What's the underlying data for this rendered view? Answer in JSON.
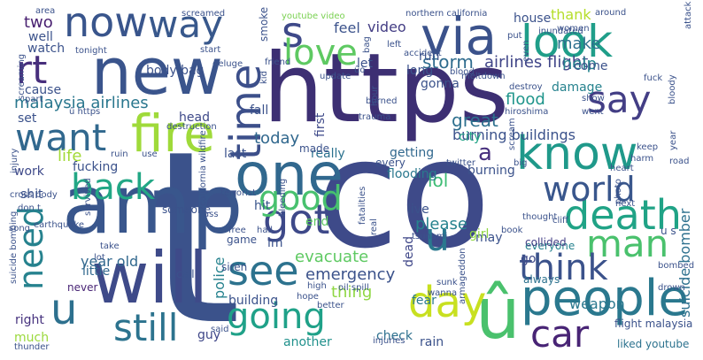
{
  "words": [
    {
      "text": "t",
      "color": "#3b528b"
    },
    {
      "text": "co",
      "color": "#3e4a89"
    },
    {
      "text": "https",
      "color": "#3d2f73"
    },
    {
      "text": "amp",
      "color": "#39568c"
    },
    {
      "text": "new",
      "color": "#3a548c"
    },
    {
      "text": "will",
      "color": "#3e4a89"
    },
    {
      "text": "û",
      "color": "#4ac16d"
    },
    {
      "text": "one",
      "color": "#31688e"
    },
    {
      "text": "people",
      "color": "#2a788e"
    },
    {
      "text": "via",
      "color": "#3b528b"
    },
    {
      "text": "know",
      "color": "#1f998a"
    },
    {
      "text": "s",
      "color": "#3e4989"
    },
    {
      "text": "now",
      "color": "#39558c"
    },
    {
      "text": "fire",
      "color": "#9fda3a"
    },
    {
      "text": "look",
      "color": "#1f9e89"
    },
    {
      "text": "death",
      "color": "#20a386"
    },
    {
      "text": "got",
      "color": "#3e4989"
    },
    {
      "text": "see",
      "color": "#2c728e"
    },
    {
      "text": "time",
      "color": "#3c4f8a"
    },
    {
      "text": "man",
      "color": "#4ac16d"
    },
    {
      "text": "say",
      "color": "#433e85"
    },
    {
      "text": "day",
      "color": "#c8e020"
    },
    {
      "text": "still",
      "color": "#2c738e"
    },
    {
      "text": "car",
      "color": "#482475"
    },
    {
      "text": "think",
      "color": "#3b528b"
    },
    {
      "text": "going",
      "color": "#1fa188"
    },
    {
      "text": "good",
      "color": "#48c16e"
    },
    {
      "text": "want",
      "color": "#31688e"
    },
    {
      "text": "back",
      "color": "#22a785"
    },
    {
      "text": "world",
      "color": "#39568c"
    },
    {
      "text": "way",
      "color": "#38588c"
    },
    {
      "text": "u",
      "color": "#2d708e"
    },
    {
      "text": "love",
      "color": "#5ec962"
    },
    {
      "text": "rt",
      "color": "#472e7c"
    },
    {
      "text": "need",
      "color": "#26828e"
    },
    {
      "text": "u",
      "color": "#2a778e"
    },
    {
      "text": "emergency",
      "color": "#3b528b"
    },
    {
      "text": "malaysia airlines",
      "color": "#2a778e"
    },
    {
      "text": "storm",
      "color": "#2f6c8e"
    },
    {
      "text": "airlines flight",
      "color": "#404588"
    },
    {
      "text": "suicide bomber",
      "color": "#2d708e"
    },
    {
      "text": "flood",
      "color": "#1f958b"
    },
    {
      "text": "great",
      "color": "#2d708e"
    },
    {
      "text": "burning buildings",
      "color": "#3b528b"
    },
    {
      "text": "today",
      "color": "#31688e"
    },
    {
      "text": "year old",
      "color": "#31688e"
    },
    {
      "text": "life",
      "color": "#a2da37"
    },
    {
      "text": "two",
      "color": "#481f70"
    },
    {
      "text": "make",
      "color": "#2d708e"
    },
    {
      "text": "thank",
      "color": "#b5de2b"
    },
    {
      "text": "feel",
      "color": "#3b528b"
    },
    {
      "text": "video",
      "color": "#433d84"
    },
    {
      "text": "help",
      "color": "#25848e"
    },
    {
      "text": "a",
      "color": "#472f7d"
    },
    {
      "text": "police",
      "color": "#26828e"
    },
    {
      "text": "building",
      "color": "#3b528b"
    },
    {
      "text": "lol",
      "color": "#3dbc74"
    },
    {
      "text": "dead",
      "color": "#3f4788"
    },
    {
      "text": "please",
      "color": "#26828e"
    },
    {
      "text": "evacuate",
      "color": "#5ec962"
    },
    {
      "text": "thing",
      "color": "#8fd744"
    },
    {
      "text": "weapon",
      "color": "#2a788e"
    },
    {
      "text": "flight malaysia",
      "color": "#3b528b"
    },
    {
      "text": "liked youtube",
      "color": "#2c728e"
    },
    {
      "text": "rain",
      "color": "#3b528b"
    },
    {
      "text": "check",
      "color": "#2d708e"
    },
    {
      "text": "another",
      "color": "#21918c"
    },
    {
      "text": "guy",
      "color": "#3f4788"
    },
    {
      "text": "much",
      "color": "#9bd93c"
    },
    {
      "text": "right",
      "color": "#46327e"
    },
    {
      "text": "never",
      "color": "#482475"
    },
    {
      "text": "little",
      "color": "#31688e"
    },
    {
      "text": "fear",
      "color": "#2a788e"
    },
    {
      "text": "may",
      "color": "#3b528b"
    },
    {
      "text": "girl",
      "color": "#90d743"
    },
    {
      "text": "everyone",
      "color": "#26828e"
    },
    {
      "text": "always",
      "color": "#2c728e"
    },
    {
      "text": "go",
      "color": "#3e4989"
    },
    {
      "text": "collided",
      "color": "#433e85"
    },
    {
      "text": "damage",
      "color": "#26828e"
    },
    {
      "text": "come",
      "color": "#3b528b"
    },
    {
      "text": "burning",
      "color": "#3b528b"
    },
    {
      "text": "city",
      "color": "#20a386"
    },
    {
      "text": "really",
      "color": "#2c728e"
    },
    {
      "text": "first",
      "color": "#3e4989"
    },
    {
      "text": "getting",
      "color": "#31688e"
    },
    {
      "text": "flooding",
      "color": "#2a788e"
    },
    {
      "text": "every",
      "color": "#3b528b"
    },
    {
      "text": "made",
      "color": "#3b528b"
    },
    {
      "text": "fucking",
      "color": "#3b528b"
    },
    {
      "text": "work",
      "color": "#3e4989"
    },
    {
      "text": "shit",
      "color": "#3b528b"
    },
    {
      "text": "hit",
      "color": "#39558c"
    },
    {
      "text": "end",
      "color": "#5ec962"
    },
    {
      "text": "im",
      "color": "#3b528b"
    },
    {
      "text": "call",
      "color": "#3b528b"
    },
    {
      "text": "game",
      "color": "#3b528b"
    },
    {
      "text": "siren",
      "color": "#3b528b"
    },
    {
      "text": "live",
      "color": "#3b528b"
    },
    {
      "text": "fall",
      "color": "#3b528b"
    },
    {
      "text": "head",
      "color": "#3e4989"
    },
    {
      "text": "set",
      "color": "#3b528b"
    },
    {
      "text": "cause",
      "color": "#3b528b"
    },
    {
      "text": "well",
      "color": "#3b528b"
    },
    {
      "text": "watch",
      "color": "#3b528b"
    },
    {
      "text": "body bag",
      "color": "#3b528b"
    },
    {
      "text": "let",
      "color": "#3b528b"
    },
    {
      "text": "long",
      "color": "#3b528b"
    },
    {
      "text": "run",
      "color": "#3b528b"
    },
    {
      "text": "house",
      "color": "#3b528b"
    },
    {
      "text": "gonna",
      "color": "#3b528b"
    },
    {
      "text": "smoke",
      "color": "#3b528b"
    },
    {
      "text": "last",
      "color": "#3b528b"
    },
    {
      "text": "someone",
      "color": "#3b528b"
    },
    {
      "text": "youtube video",
      "color": "#7ad151"
    },
    {
      "text": "northern california",
      "color": "#3b528b"
    },
    {
      "text": "screamed",
      "color": "#3b528b"
    },
    {
      "text": "area",
      "color": "#3b528b"
    },
    {
      "text": "around",
      "color": "#3b528b"
    },
    {
      "text": "women",
      "color": "#3b528b"
    },
    {
      "text": "attack",
      "color": "#3b528b"
    },
    {
      "text": "even",
      "color": "#3b528b"
    },
    {
      "text": "inundated",
      "color": "#3b528b"
    },
    {
      "text": "accident",
      "color": "#3b528b"
    },
    {
      "text": "meltdown",
      "color": "#3b528b"
    },
    {
      "text": "blood",
      "color": "#3b528b"
    },
    {
      "text": "left",
      "color": "#3b528b"
    },
    {
      "text": "put",
      "color": "#3b528b"
    },
    {
      "text": "friend",
      "color": "#3b528b"
    },
    {
      "text": "update",
      "color": "#3b528b"
    },
    {
      "text": "kid",
      "color": "#3b528b"
    },
    {
      "text": "deluge",
      "color": "#3b528b"
    },
    {
      "text": "start",
      "color": "#3b528b"
    },
    {
      "text": "tonight",
      "color": "#3b528b"
    },
    {
      "text": "screaming",
      "color": "#3b528b"
    },
    {
      "text": "part",
      "color": "#3b528b"
    },
    {
      "text": "û https",
      "color": "#3b528b"
    },
    {
      "text": "destruction",
      "color": "#3b528b"
    },
    {
      "text": "injury",
      "color": "#3b528b"
    },
    {
      "text": "ruin",
      "color": "#3b528b"
    },
    {
      "text": "use",
      "color": "#3b528b"
    },
    {
      "text": "cross body",
      "color": "#3b528b"
    },
    {
      "text": "don t",
      "color": "#3b528b"
    },
    {
      "text": "song",
      "color": "#3b528b"
    },
    {
      "text": "earthquake",
      "color": "#3b528b"
    },
    {
      "text": "survived",
      "color": "#3b528b"
    },
    {
      "text": "take",
      "color": "#3b528b"
    },
    {
      "text": "lot",
      "color": "#3b528b"
    },
    {
      "text": "california wildfire",
      "color": "#3b528b"
    },
    {
      "text": "suicide bombing",
      "color": "#3b528b"
    },
    {
      "text": "thunder",
      "color": "#3b528b"
    },
    {
      "text": "said",
      "color": "#3b528b"
    },
    {
      "text": "hope",
      "color": "#3b528b"
    },
    {
      "text": "high",
      "color": "#3b528b"
    },
    {
      "text": "oil spill",
      "color": "#3b528b"
    },
    {
      "text": "better",
      "color": "#3b528b"
    },
    {
      "text": "injuries",
      "color": "#3b528b"
    },
    {
      "text": "armageddon",
      "color": "#3b528b"
    },
    {
      "text": "sunk",
      "color": "#3b528b"
    },
    {
      "text": "wanna",
      "color": "#3b528b"
    },
    {
      "text": "tsunami",
      "color": "#3b528b"
    },
    {
      "text": "real",
      "color": "#3b528b"
    },
    {
      "text": "book",
      "color": "#3b528b"
    },
    {
      "text": "thought",
      "color": "#3b528b"
    },
    {
      "text": "bombed",
      "color": "#3b528b"
    },
    {
      "text": "drown",
      "color": "#3b528b"
    },
    {
      "text": "cliff",
      "color": "#3b528b"
    },
    {
      "text": "next",
      "color": "#3b528b"
    },
    {
      "text": "harm",
      "color": "#3b528b"
    },
    {
      "text": "heart",
      "color": "#3b528b"
    },
    {
      "text": "road",
      "color": "#3b528b"
    },
    {
      "text": "keep",
      "color": "#3b528b"
    },
    {
      "text": "photo",
      "color": "#3b528b"
    },
    {
      "text": "year",
      "color": "#3b528b"
    },
    {
      "text": "big",
      "color": "#3b528b"
    },
    {
      "text": "twitter",
      "color": "#3b528b"
    },
    {
      "text": "scream",
      "color": "#3b528b"
    },
    {
      "text": "hiroshima",
      "color": "#3b528b"
    },
    {
      "text": "went",
      "color": "#3b528b"
    },
    {
      "text": "show",
      "color": "#3b528b"
    },
    {
      "text": "bloody",
      "color": "#3b528b"
    },
    {
      "text": "fuck",
      "color": "#3b528b"
    },
    {
      "text": "destroy",
      "color": "#3b528b"
    },
    {
      "text": "trauma",
      "color": "#3b528b"
    },
    {
      "text": "burned",
      "color": "#3b528b"
    },
    {
      "text": "hour",
      "color": "#3b528b"
    },
    {
      "text": "terrorist",
      "color": "#3b528b"
    },
    {
      "text": "ass",
      "color": "#3b528b"
    },
    {
      "text": "bleeding",
      "color": "#3b528b"
    },
    {
      "text": "free",
      "color": "#3b528b"
    },
    {
      "text": "fatalities",
      "color": "#3b528b"
    },
    {
      "text": "hail",
      "color": "#3b528b"
    },
    {
      "text": "bag",
      "color": "#3b528b"
    },
    {
      "text": "ûò",
      "color": "#3b528b"
    },
    {
      "text": "u s",
      "color": "#3b528b"
    }
  ]
}
